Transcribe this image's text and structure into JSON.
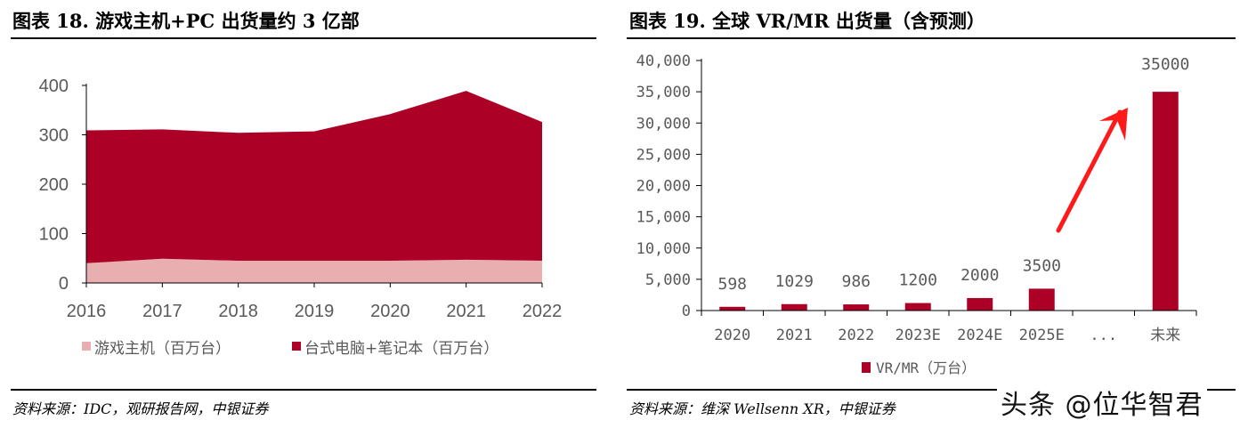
{
  "left": {
    "title": "图表 18. 游戏主机+PC 出货量约 3 亿部",
    "source": "资料来源：IDC，观研报告网，中银证券"
  },
  "right": {
    "title": "图表 19. 全球 VR/MR 出货量（含预测）",
    "source": "资料来源：维深 Wellsenn XR，中银证券"
  },
  "watermark": "头条 @位华智君",
  "chart_data": [
    {
      "type": "area",
      "stacked": true,
      "categories": [
        "2016",
        "2017",
        "2018",
        "2019",
        "2020",
        "2021",
        "2022"
      ],
      "series": [
        {
          "name": "游戏主机（百万台）",
          "values": [
            40,
            49,
            45,
            45,
            45,
            47,
            45
          ],
          "color": "#e8aeb0"
        },
        {
          "name": "台式电脑+笔记本（百万台）",
          "values": [
            269,
            262,
            259,
            262,
            297,
            342,
            281
          ],
          "color": "#ad0027"
        }
      ],
      "ylim": [
        0,
        400
      ],
      "yticks": [
        "0",
        "100",
        "200",
        "300",
        "400"
      ],
      "grid": false,
      "legend": "bottom"
    },
    {
      "type": "bar",
      "categories": [
        "2020",
        "2021",
        "2022",
        "2023E",
        "2024E",
        "2025E",
        "...",
        "未来"
      ],
      "series": [
        {
          "name": "VR/MR（万台）",
          "values": [
            598,
            1029,
            986,
            1200,
            2000,
            3500,
            null,
            35000
          ],
          "color": "#ad0027"
        }
      ],
      "data_labels": [
        "598",
        "1029",
        "986",
        "1200",
        "2000",
        "3500",
        "",
        "35000"
      ],
      "ylim": [
        0,
        40000
      ],
      "yticks": [
        "0",
        "5,000",
        "10,000",
        "15,000",
        "20,000",
        "25,000",
        "30,000",
        "35,000",
        "40,000"
      ],
      "grid": false,
      "legend": "bottom",
      "annotation": "red-upward-arrow",
      "annotation_color": "#ff1a1a"
    }
  ]
}
